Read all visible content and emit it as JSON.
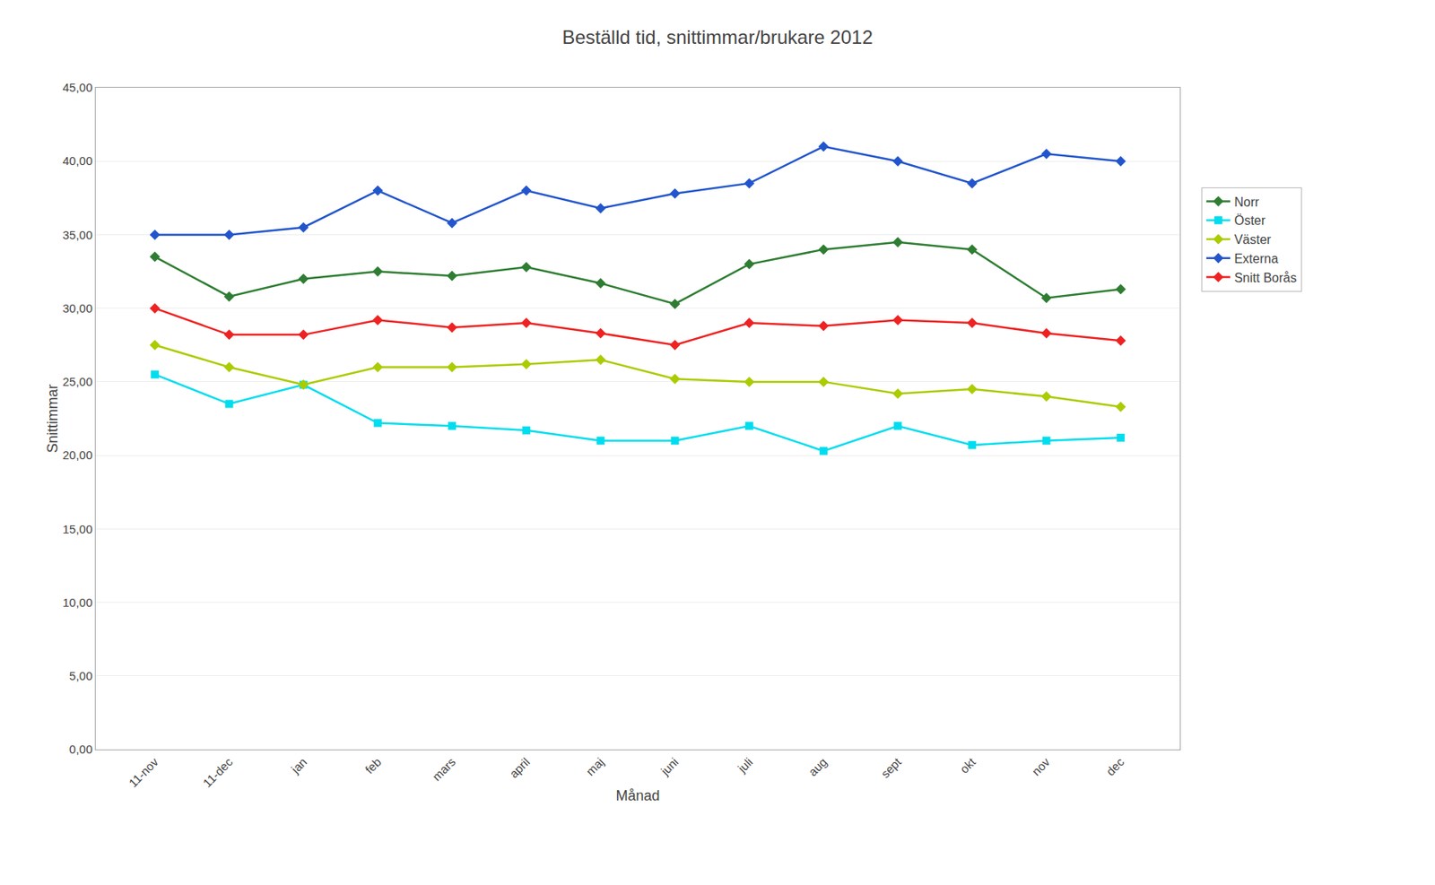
{
  "chart_data": {
    "type": "line",
    "title": "Beställd tid, snittimmar/brukare 2012",
    "xlabel": "Månad",
    "ylabel": "Snittimmar",
    "categories": [
      "11-nov",
      "11-dec",
      "jan",
      "feb",
      "mars",
      "april",
      "maj",
      "juni",
      "juli",
      "aug",
      "sept",
      "okt",
      "nov",
      "dec"
    ],
    "series": [
      {
        "name": "Norr",
        "color": "#2E7D32",
        "marker": "diamond",
        "values": [
          33.5,
          30.8,
          32.0,
          32.5,
          32.2,
          32.8,
          31.7,
          30.3,
          33.0,
          34.0,
          34.5,
          34.0,
          30.7,
          31.3
        ]
      },
      {
        "name": "Öster",
        "color": "#00DDEE",
        "marker": "square",
        "values": [
          25.5,
          23.5,
          24.8,
          22.2,
          22.0,
          21.7,
          21.0,
          21.0,
          22.0,
          20.3,
          22.0,
          20.7,
          21.0,
          21.2
        ]
      },
      {
        "name": "Väster",
        "color": "#AACC00",
        "marker": "diamond",
        "values": [
          27.5,
          26.0,
          24.8,
          26.0,
          26.0,
          26.2,
          26.5,
          25.2,
          25.0,
          25.0,
          24.2,
          24.5,
          24.0,
          23.3
        ]
      },
      {
        "name": "Externa",
        "color": "#2255CC",
        "marker": "diamond",
        "values": [
          35.0,
          35.0,
          35.5,
          38.0,
          35.8,
          38.0,
          36.8,
          37.8,
          38.5,
          41.0,
          40.0,
          38.5,
          40.5,
          40.0
        ]
      },
      {
        "name": "Snitt Borås",
        "color": "#EE2222",
        "marker": "diamond",
        "values": [
          30.0,
          28.2,
          28.2,
          29.2,
          28.7,
          29.0,
          28.3,
          27.5,
          29.0,
          28.8,
          29.2,
          29.0,
          28.3,
          27.8
        ]
      }
    ],
    "ylim": [
      0,
      45
    ],
    "yticks": [
      {
        "value": 0,
        "label": "0,00"
      },
      {
        "value": 5,
        "label": "5,00"
      },
      {
        "value": 10,
        "label": "10,00"
      },
      {
        "value": 15,
        "label": "15,00"
      },
      {
        "value": 20,
        "label": "20,00"
      },
      {
        "value": 25,
        "label": "25,00"
      },
      {
        "value": 30,
        "label": "30,00"
      },
      {
        "value": 35,
        "label": "35,00"
      },
      {
        "value": 40,
        "label": "40,00"
      },
      {
        "value": 45,
        "label": "45,00"
      }
    ],
    "grid": "y",
    "legend": "right"
  }
}
